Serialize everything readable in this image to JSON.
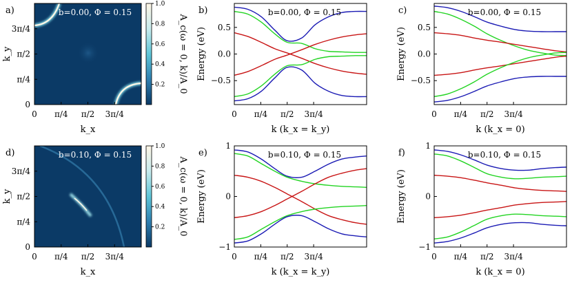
{
  "colors": {
    "blue": "#1a1ab4",
    "green": "#22d422",
    "red": "#c81414",
    "heat_bg": "#0b3a66",
    "heat_hi": "#fff6e6"
  },
  "panels": [
    {
      "id": "a",
      "type": "heatmap",
      "label": "a)",
      "annotation": "b=0.00, Φ = 0.15",
      "xlabel": "k_x",
      "ylabel": "k_y",
      "cbar_label": "A_c(ω = 0, k)/A_0",
      "xticks": [
        "0",
        "π/4",
        "π/2",
        "3π/4"
      ],
      "yticks": [
        "0",
        "π/4",
        "π/2",
        "3π/4"
      ],
      "cbar_ticks": [
        "0.2",
        "0.4",
        "0.6",
        "0.8",
        "1.0"
      ],
      "feature": "corner-arcs"
    },
    {
      "id": "b",
      "type": "line",
      "label": "b)",
      "annotation": "b=0.00, Φ = 0.15",
      "xlabel": "k (k_x = k_y)",
      "ylabel": "Energy (eV)",
      "ylim": [
        -0.95,
        0.95
      ],
      "xticks": [
        "0",
        "π/4",
        "π/2",
        "3π/4"
      ],
      "yticks": [
        "−0.5",
        "0.0",
        "0.5"
      ],
      "ytick_values": [
        -0.5,
        0,
        0.5
      ]
    },
    {
      "id": "c",
      "type": "line",
      "label": "c)",
      "annotation": "b=0.00, Φ = 0.15",
      "xlabel": "k (k_x = 0)",
      "ylabel": "Energy (eV)",
      "ylim": [
        -0.95,
        0.95
      ],
      "xticks": [
        "0",
        "π/4",
        "π/2",
        "3π/4"
      ],
      "yticks": [
        "−0.5",
        "0.0",
        "0.5"
      ],
      "ytick_values": [
        -0.5,
        0,
        0.5
      ]
    },
    {
      "id": "d",
      "type": "heatmap",
      "label": "d)",
      "annotation": "b=0.10, Φ = 0.15",
      "xlabel": "k_x",
      "ylabel": "k_y",
      "cbar_label": "A_c(ω = 0, k)/A_0",
      "xticks": [
        "0",
        "π/4",
        "π/2",
        "3π/4"
      ],
      "yticks": [
        "0",
        "π/4",
        "π/2",
        "3π/4"
      ],
      "cbar_ticks": [
        "0.2",
        "0.4",
        "0.6",
        "0.8",
        "1.0"
      ],
      "feature": "diagonal-arc"
    },
    {
      "id": "e",
      "type": "line",
      "label": "e)",
      "annotation": "b=0.10, Φ = 0.15",
      "xlabel": "k (k_x = k_y)",
      "ylabel": "Energy (eV)",
      "ylim": [
        -1,
        1
      ],
      "xticks": [
        "0",
        "π/4",
        "π/2",
        "3π/4"
      ],
      "yticks": [
        "−1",
        "0",
        "1"
      ],
      "ytick_values": [
        -1,
        0,
        1
      ]
    },
    {
      "id": "f",
      "type": "line",
      "label": "f)",
      "annotation": "b=0.10, Φ = 0.15",
      "xlabel": "k (k_x = 0)",
      "ylabel": "Energy (eV)",
      "ylim": [
        -1,
        1
      ],
      "xticks": [
        "0",
        "π/4",
        "π/2",
        "3π/4"
      ],
      "yticks": [
        "−1",
        "0",
        "1"
      ],
      "ytick_values": [
        -1,
        0,
        1
      ]
    }
  ],
  "chart_data": [
    {
      "type": "line",
      "panel": "b",
      "x_range": [
        0,
        3.93
      ],
      "ylim": [
        -0.95,
        0.95
      ],
      "x": [
        0,
        0.4,
        0.8,
        1.2,
        1.57,
        2.0,
        2.4,
        2.8,
        3.2,
        3.6,
        3.93
      ],
      "series": [
        {
          "color": "blue",
          "values": [
            0.88,
            0.84,
            0.7,
            0.45,
            0.25,
            0.3,
            0.55,
            0.7,
            0.78,
            0.8,
            0.8
          ]
        },
        {
          "color": "green",
          "values": [
            0.8,
            0.75,
            0.6,
            0.38,
            0.22,
            0.2,
            0.1,
            0.05,
            0.04,
            0.03,
            0.03
          ]
        },
        {
          "color": "red",
          "values": [
            0.4,
            0.33,
            0.22,
            0.1,
            0.02,
            -0.08,
            -0.18,
            -0.26,
            -0.32,
            -0.36,
            -0.38
          ]
        },
        {
          "color": "red",
          "values": [
            -0.4,
            -0.33,
            -0.22,
            -0.1,
            -0.02,
            0.08,
            0.18,
            0.26,
            0.32,
            0.36,
            0.38
          ]
        },
        {
          "color": "green",
          "values": [
            -0.8,
            -0.75,
            -0.6,
            -0.38,
            -0.22,
            -0.2,
            -0.1,
            -0.05,
            -0.04,
            -0.03,
            -0.03
          ]
        },
        {
          "color": "blue",
          "values": [
            -0.88,
            -0.84,
            -0.7,
            -0.45,
            -0.25,
            -0.3,
            -0.55,
            -0.7,
            -0.78,
            -0.8,
            -0.8
          ]
        }
      ]
    },
    {
      "type": "line",
      "panel": "c",
      "x_range": [
        0,
        3.93
      ],
      "ylim": [
        -0.95,
        0.95
      ],
      "x": [
        0,
        0.4,
        0.8,
        1.2,
        1.57,
        2.0,
        2.4,
        2.8,
        3.2,
        3.6,
        3.93
      ],
      "series": [
        {
          "color": "blue",
          "values": [
            0.9,
            0.87,
            0.8,
            0.7,
            0.6,
            0.52,
            0.46,
            0.43,
            0.42,
            0.42,
            0.42
          ]
        },
        {
          "color": "green",
          "values": [
            0.8,
            0.75,
            0.65,
            0.52,
            0.38,
            0.25,
            0.15,
            0.07,
            0.02,
            -0.02,
            -0.03
          ]
        },
        {
          "color": "red",
          "values": [
            0.4,
            0.38,
            0.35,
            0.3,
            0.26,
            0.22,
            0.18,
            0.14,
            0.1,
            0.06,
            0.04
          ]
        },
        {
          "color": "red",
          "values": [
            -0.4,
            -0.38,
            -0.35,
            -0.3,
            -0.26,
            -0.22,
            -0.18,
            -0.14,
            -0.1,
            -0.06,
            -0.04
          ]
        },
        {
          "color": "green",
          "values": [
            -0.8,
            -0.75,
            -0.65,
            -0.52,
            -0.38,
            -0.25,
            -0.15,
            -0.07,
            -0.02,
            0.02,
            0.03
          ]
        },
        {
          "color": "blue",
          "values": [
            -0.9,
            -0.87,
            -0.8,
            -0.7,
            -0.6,
            -0.52,
            -0.46,
            -0.43,
            -0.42,
            -0.42,
            -0.42
          ]
        }
      ]
    },
    {
      "type": "line",
      "panel": "e",
      "x_range": [
        0,
        3.93
      ],
      "ylim": [
        -1,
        1
      ],
      "x": [
        0,
        0.4,
        0.8,
        1.2,
        1.57,
        2.0,
        2.4,
        2.8,
        3.2,
        3.6,
        3.93
      ],
      "series": [
        {
          "color": "blue",
          "values": [
            0.92,
            0.88,
            0.74,
            0.55,
            0.4,
            0.38,
            0.5,
            0.64,
            0.74,
            0.78,
            0.8
          ]
        },
        {
          "color": "green",
          "values": [
            0.85,
            0.8,
            0.65,
            0.5,
            0.38,
            0.3,
            0.25,
            0.22,
            0.2,
            0.19,
            0.18
          ]
        },
        {
          "color": "red",
          "values": [
            0.42,
            0.38,
            0.3,
            0.18,
            0.05,
            -0.1,
            -0.25,
            -0.38,
            -0.46,
            -0.52,
            -0.55
          ]
        },
        {
          "color": "red",
          "values": [
            -0.42,
            -0.38,
            -0.3,
            -0.18,
            -0.05,
            0.1,
            0.25,
            0.38,
            0.46,
            0.52,
            0.55
          ]
        },
        {
          "color": "green",
          "values": [
            -0.85,
            -0.8,
            -0.65,
            -0.5,
            -0.38,
            -0.3,
            -0.25,
            -0.22,
            -0.2,
            -0.19,
            -0.18
          ]
        },
        {
          "color": "blue",
          "values": [
            -0.92,
            -0.88,
            -0.74,
            -0.55,
            -0.4,
            -0.38,
            -0.5,
            -0.64,
            -0.74,
            -0.78,
            -0.8
          ]
        }
      ]
    },
    {
      "type": "line",
      "panel": "f",
      "x_range": [
        0,
        3.93
      ],
      "ylim": [
        -1,
        1
      ],
      "x": [
        0,
        0.4,
        0.8,
        1.2,
        1.57,
        2.0,
        2.4,
        2.8,
        3.2,
        3.6,
        3.93
      ],
      "series": [
        {
          "color": "blue",
          "values": [
            0.92,
            0.89,
            0.82,
            0.72,
            0.62,
            0.55,
            0.52,
            0.52,
            0.55,
            0.57,
            0.58
          ]
        },
        {
          "color": "green",
          "values": [
            0.84,
            0.8,
            0.7,
            0.57,
            0.45,
            0.38,
            0.35,
            0.36,
            0.38,
            0.39,
            0.4
          ]
        },
        {
          "color": "red",
          "values": [
            0.42,
            0.4,
            0.37,
            0.32,
            0.27,
            0.22,
            0.17,
            0.14,
            0.12,
            0.11,
            0.1
          ]
        },
        {
          "color": "red",
          "values": [
            -0.42,
            -0.4,
            -0.37,
            -0.32,
            -0.27,
            -0.22,
            -0.17,
            -0.14,
            -0.12,
            -0.11,
            -0.1
          ]
        },
        {
          "color": "green",
          "values": [
            -0.84,
            -0.8,
            -0.7,
            -0.57,
            -0.45,
            -0.38,
            -0.35,
            -0.36,
            -0.38,
            -0.39,
            -0.4
          ]
        },
        {
          "color": "blue",
          "values": [
            -0.92,
            -0.89,
            -0.82,
            -0.72,
            -0.62,
            -0.55,
            -0.52,
            -0.52,
            -0.55,
            -0.57,
            -0.58
          ]
        }
      ]
    }
  ]
}
